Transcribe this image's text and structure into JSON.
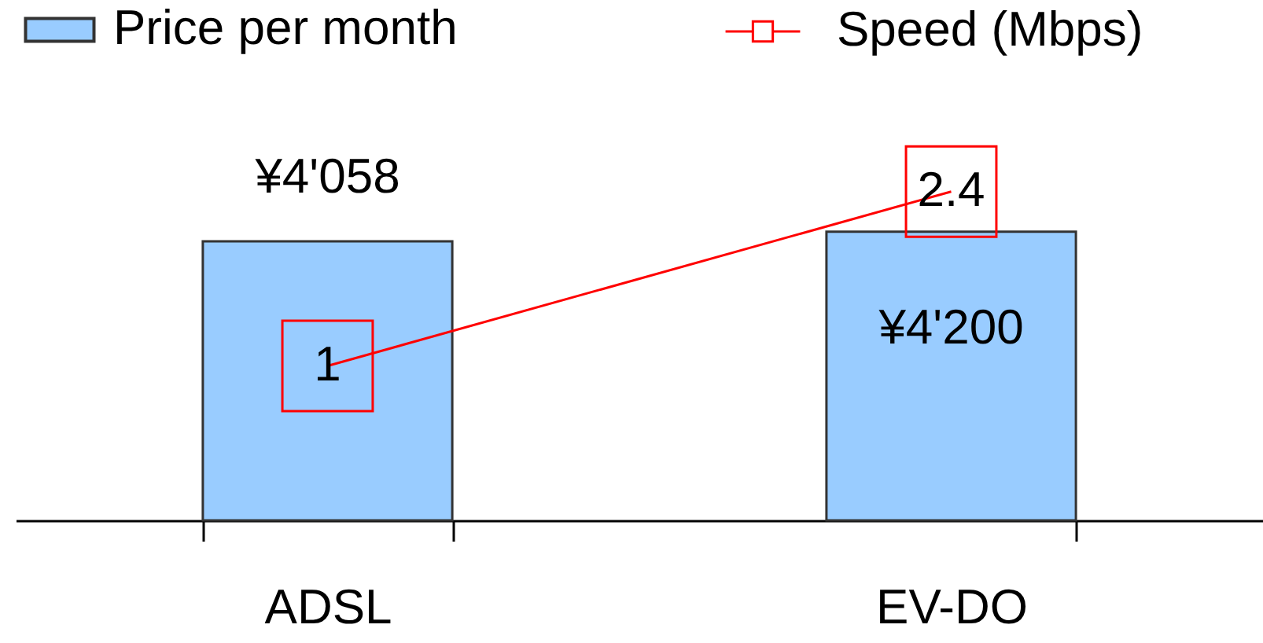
{
  "chart_data": {
    "type": "bar",
    "categories": [
      "ADSL",
      "EV-DO"
    ],
    "series": [
      {
        "name": "Price per month",
        "color": "#99ccff",
        "values": [
          4058,
          4200
        ],
        "value_labels": [
          "¥4'058",
          "¥4'200"
        ]
      },
      {
        "name": "Speed (Mbps)",
        "type": "line",
        "axis": "y2",
        "color": "#ff0000",
        "values": [
          1,
          2.4
        ],
        "value_labels": [
          "1",
          "2.4"
        ]
      }
    ],
    "legend": "top"
  }
}
